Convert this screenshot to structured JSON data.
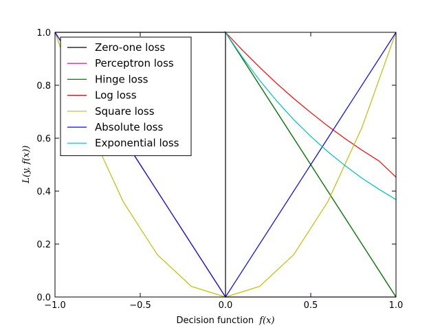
{
  "chart_data": {
    "type": "line",
    "xlabel": "Decision function",
    "xlabel_math": "f(x)",
    "ylabel": "L(y, f(x))",
    "xlim": [
      -1.0,
      1.0
    ],
    "ylim": [
      0.0,
      1.0
    ],
    "xticks": [
      -1.0,
      -0.5,
      0.0,
      0.5,
      1.0
    ],
    "xtick_labels": [
      "−1.0",
      "−0.5",
      "0.0",
      "0.5",
      "1.0"
    ],
    "yticks": [
      0.0,
      0.2,
      0.4,
      0.6,
      0.8,
      1.0
    ],
    "ytick_labels": [
      "0.0",
      "0.2",
      "0.4",
      "0.6",
      "0.8",
      "1.0"
    ],
    "legend_position": "top-left",
    "grid": false,
    "series": [
      {
        "name": "Zero-one loss",
        "color": "#000000",
        "x": [
          -1.0,
          0.0,
          0.0,
          0.0,
          1.0
        ],
        "y": [
          1.0,
          1.0,
          0.0,
          1.0,
          0.0
        ]
      },
      {
        "name": "Perceptron loss",
        "color": "#bf00bf",
        "x": [
          -1.0,
          -0.5,
          0.0,
          0.5,
          1.0
        ],
        "y": [
          1.0,
          0.5,
          0.0,
          0.0,
          0.0
        ]
      },
      {
        "name": "Hinge loss",
        "color": "#008000",
        "x": [
          0.0,
          0.25,
          0.5,
          0.75,
          1.0
        ],
        "y": [
          1.0,
          0.75,
          0.5,
          0.25,
          0.0
        ]
      },
      {
        "name": "Log loss",
        "color": "#ff0000",
        "x": [
          0.0,
          0.1,
          0.2,
          0.3,
          0.4,
          0.5,
          0.6,
          0.7,
          0.8,
          0.9,
          1.0
        ],
        "y": [
          1.0,
          0.932,
          0.868,
          0.807,
          0.75,
          0.697,
          0.646,
          0.599,
          0.555,
          0.514,
          0.453
        ]
      },
      {
        "name": "Square loss",
        "color": "#bfbf00",
        "x": [
          -1.0,
          -0.8,
          -0.6,
          -0.4,
          -0.2,
          0.0,
          0.2,
          0.4,
          0.6,
          0.8,
          1.0
        ],
        "y": [
          1.0,
          0.64,
          0.36,
          0.16,
          0.04,
          0.0,
          0.04,
          0.16,
          0.36,
          0.64,
          1.0
        ]
      },
      {
        "name": "Absolute loss",
        "color": "#0000ff",
        "x": [
          -1.0,
          -0.5,
          0.0,
          0.5,
          1.0
        ],
        "y": [
          1.0,
          0.5,
          0.0,
          0.5,
          1.0
        ]
      },
      {
        "name": "Exponential loss",
        "color": "#00bfbf",
        "x": [
          0.0,
          0.1,
          0.2,
          0.3,
          0.4,
          0.5,
          0.6,
          0.7,
          0.8,
          0.9,
          1.0
        ],
        "y": [
          1.0,
          0.905,
          0.819,
          0.741,
          0.67,
          0.607,
          0.549,
          0.497,
          0.449,
          0.407,
          0.368
        ]
      }
    ]
  }
}
